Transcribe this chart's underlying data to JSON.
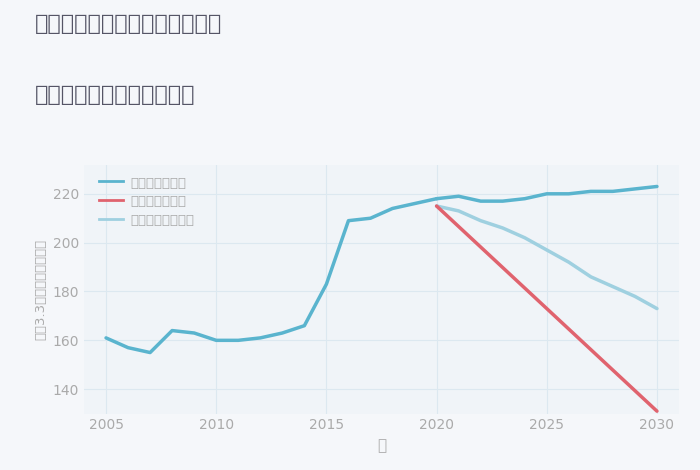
{
  "title_line1": "愛知県名古屋市千種区本山町の",
  "title_line2": "中古マンションの価格推移",
  "xlabel": "年",
  "ylabel": "坪（3.3㎡）単価（万円）",
  "background_color": "#f5f7fa",
  "plot_bg_color": "#f0f4f8",
  "grid_color": "#dce8f0",
  "years_historical": [
    2005,
    2006,
    2007,
    2008,
    2009,
    2010,
    2011,
    2012,
    2013,
    2014,
    2015,
    2016,
    2017,
    2018,
    2019,
    2020
  ],
  "values_historical": [
    161,
    157,
    155,
    164,
    163,
    160,
    160,
    161,
    163,
    166,
    183,
    209,
    210,
    214,
    216,
    218
  ],
  "good_years": [
    2020,
    2021,
    2022,
    2023,
    2024,
    2025,
    2026,
    2027,
    2028,
    2029,
    2030
  ],
  "good_values": [
    218,
    219,
    217,
    217,
    218,
    220,
    220,
    221,
    221,
    222,
    223
  ],
  "bad_years": [
    2020,
    2030
  ],
  "bad_values": [
    215,
    131
  ],
  "normal_years": [
    2020,
    2021,
    2022,
    2023,
    2024,
    2025,
    2026,
    2027,
    2028,
    2029,
    2030
  ],
  "normal_values": [
    215,
    213,
    209,
    206,
    202,
    197,
    192,
    186,
    182,
    178,
    173
  ],
  "good_color": "#5ab4ce",
  "bad_color": "#e0636e",
  "normal_color": "#9fd0e0",
  "historical_color": "#9fd0e0",
  "ylim": [
    130,
    232
  ],
  "xlim": [
    2004,
    2031
  ],
  "yticks": [
    140,
    160,
    180,
    200,
    220
  ],
  "xticks": [
    2005,
    2010,
    2015,
    2020,
    2025,
    2030
  ],
  "legend_labels": [
    "グッドシナリオ",
    "バッドシナリオ",
    "ノーマルシナリオ"
  ],
  "title_color": "#555566",
  "axis_color": "#aaaaaa",
  "tick_color": "#aaaaaa",
  "line_width": 2.5
}
